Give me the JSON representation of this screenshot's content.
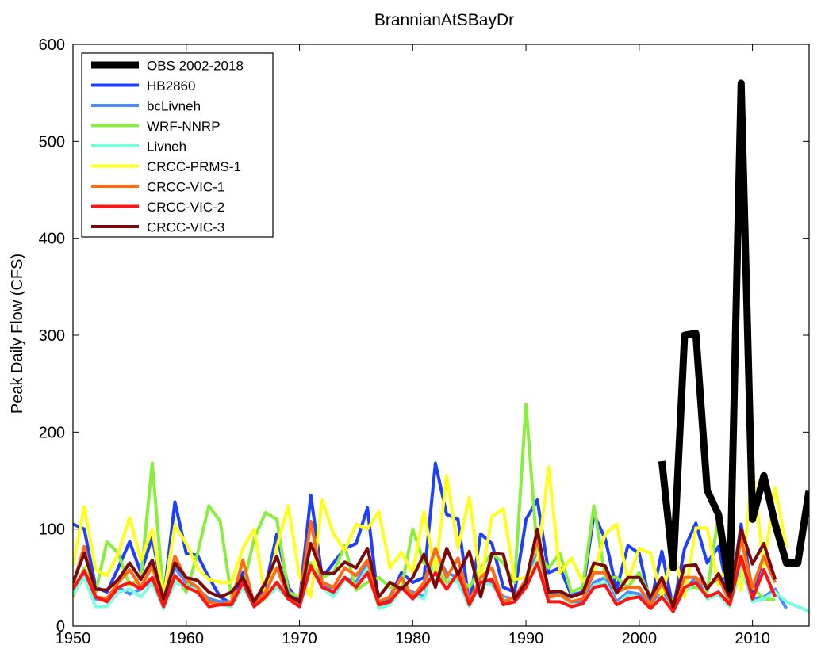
{
  "chart_data": {
    "type": "line",
    "title": "BrannianAtSBayDr",
    "xlabel": "",
    "ylabel": "Peak Daily Flow (CFS)",
    "xlim": [
      1950,
      2015
    ],
    "ylim": [
      0,
      600
    ],
    "xticks": [
      "1950",
      "1960",
      "1970",
      "1980",
      "1990",
      "2000",
      "2010"
    ],
    "yticks": [
      "0",
      "100",
      "200",
      "300",
      "400",
      "500",
      "600"
    ],
    "grid": false,
    "legend_position": "top-left",
    "series": [
      {
        "name": "HB2860",
        "color": "#1f3fff",
        "width": 4,
        "x_start": 1950,
        "values": [
          105,
          100,
          40,
          35,
          60,
          87,
          55,
          92,
          28,
          128,
          75,
          73,
          50,
          30,
          23,
          55,
          22,
          40,
          95,
          40,
          25,
          135,
          50,
          65,
          80,
          85,
          122,
          20,
          30,
          55,
          45,
          50,
          168,
          115,
          110,
          22,
          95,
          85,
          40,
          35,
          110,
          130,
          55,
          60,
          32,
          35,
          115,
          90,
          38,
          83,
          75,
          22,
          77,
          18,
          80,
          106,
          65,
          82,
          25,
          105,
          35,
          70
        ]
      },
      {
        "name": "bcLivneh",
        "color": "#4a8cff",
        "width": 4,
        "x_start": 1950,
        "values": [
          35,
          52,
          28,
          27,
          40,
          33,
          38,
          48,
          20,
          60,
          45,
          38,
          28,
          25,
          25,
          40,
          22,
          30,
          45,
          30,
          22,
          65,
          45,
          35,
          50,
          45,
          65,
          20,
          25,
          40,
          35,
          30,
          75,
          55,
          50,
          22,
          50,
          45,
          30,
          28,
          45,
          75,
          30,
          35,
          25,
          25,
          45,
          50,
          25,
          35,
          33,
          20,
          35,
          18,
          38,
          50,
          30,
          35,
          22,
          65,
          28,
          30,
          38,
          18
        ]
      },
      {
        "name": "WRF-NNRP",
        "color": "#8aee3c",
        "width": 4,
        "x_start": 1950,
        "values": [
          30,
          60,
          35,
          87,
          75,
          42,
          50,
          168,
          30,
          52,
          35,
          75,
          124,
          108,
          30,
          40,
          90,
          117,
          110,
          35,
          30,
          65,
          50,
          55,
          83,
          37,
          45,
          50,
          40,
          38,
          100,
          65,
          60,
          45,
          50,
          40,
          60,
          75,
          65,
          45,
          229,
          75,
          60,
          75,
          35,
          40,
          124,
          50,
          50,
          40,
          55,
          30,
          40,
          25,
          40,
          40,
          35,
          114,
          30,
          55,
          40,
          28,
          27
        ]
      },
      {
        "name": "Livneh",
        "color": "#7dfde0",
        "width": 4,
        "x_start": 1950,
        "values": [
          33,
          50,
          20,
          20,
          35,
          38,
          30,
          45,
          18,
          45,
          40,
          38,
          25,
          22,
          20,
          40,
          20,
          28,
          40,
          28,
          20,
          60,
          40,
          30,
          48,
          40,
          60,
          18,
          22,
          38,
          32,
          28,
          70,
          50,
          45,
          20,
          45,
          42,
          28,
          25,
          42,
          70,
          28,
          32,
          22,
          22,
          42,
          45,
          22,
          32,
          30,
          18,
          32,
          16,
          35,
          45,
          28,
          32,
          20,
          60,
          25,
          28,
          35,
          25,
          20,
          15
        ]
      },
      {
        "name": "CRCC-PRMS-1",
        "color": "#ffff1e",
        "width": 4,
        "x_start": 1950,
        "values": [
          62,
          123,
          58,
          52,
          75,
          112,
          68,
          100,
          30,
          104,
          85,
          60,
          48,
          45,
          45,
          80,
          100,
          28,
          82,
          124,
          52,
          30,
          130,
          95,
          78,
          105,
          100,
          118,
          60,
          76,
          55,
          118,
          55,
          155,
          80,
          133,
          45,
          113,
          121,
          48,
          50,
          64,
          164,
          55,
          70,
          46,
          55,
          95,
          105,
          46,
          80,
          75,
          30,
          80,
          30,
          101,
          101,
          42,
          68,
          37,
          164,
          60,
          143,
          80
        ]
      },
      {
        "name": "CRCC-VIC-1",
        "color": "#ff6a14",
        "width": 4,
        "x_start": 1950,
        "values": [
          42,
          82,
          30,
          28,
          45,
          58,
          40,
          62,
          22,
          72,
          48,
          40,
          25,
          22,
          25,
          68,
          22,
          35,
          60,
          30,
          25,
          108,
          45,
          40,
          60,
          52,
          68,
          25,
          30,
          50,
          30,
          45,
          80,
          50,
          70,
          25,
          50,
          60,
          25,
          30,
          48,
          90,
          30,
          32,
          25,
          28,
          55,
          55,
          35,
          40,
          40,
          22,
          45,
          20,
          50,
          50,
          40,
          50,
          25,
          90,
          40,
          72,
          45
        ]
      },
      {
        "name": "CRCC-VIC-2",
        "color": "#ff1414",
        "width": 4,
        "x_start": 1950,
        "values": [
          38,
          57,
          30,
          25,
          40,
          45,
          38,
          50,
          20,
          52,
          40,
          35,
          20,
          22,
          22,
          45,
          20,
          30,
          45,
          28,
          20,
          62,
          40,
          35,
          50,
          40,
          55,
          22,
          25,
          40,
          28,
          40,
          55,
          38,
          55,
          22,
          45,
          48,
          22,
          25,
          40,
          65,
          25,
          25,
          20,
          23,
          40,
          42,
          22,
          28,
          30,
          18,
          30,
          15,
          40,
          45,
          30,
          35,
          22,
          72,
          28,
          58,
          30
        ]
      },
      {
        "name": "CRCC-VIC-3",
        "color": "#7a0a0a",
        "width": 4,
        "x_start": 1950,
        "values": [
          45,
          75,
          38,
          37,
          48,
          65,
          48,
          68,
          28,
          65,
          50,
          47,
          35,
          30,
          35,
          50,
          25,
          45,
          72,
          32,
          25,
          85,
          55,
          54,
          66,
          60,
          80,
          30,
          45,
          38,
          50,
          74,
          40,
          80,
          53,
          77,
          30,
          75,
          74,
          28,
          45,
          100,
          35,
          36,
          30,
          34,
          65,
          62,
          34,
          50,
          50,
          30,
          50,
          20,
          62,
          63,
          38,
          54,
          30,
          100,
          64,
          85,
          48
        ]
      },
      {
        "name": "OBS 2002-2018",
        "color": "#000000",
        "width": 9,
        "x_start": 2002,
        "values": [
          170,
          60,
          300,
          302,
          140,
          115,
          38,
          560,
          110,
          155,
          105,
          65,
          65,
          140
        ]
      }
    ]
  }
}
